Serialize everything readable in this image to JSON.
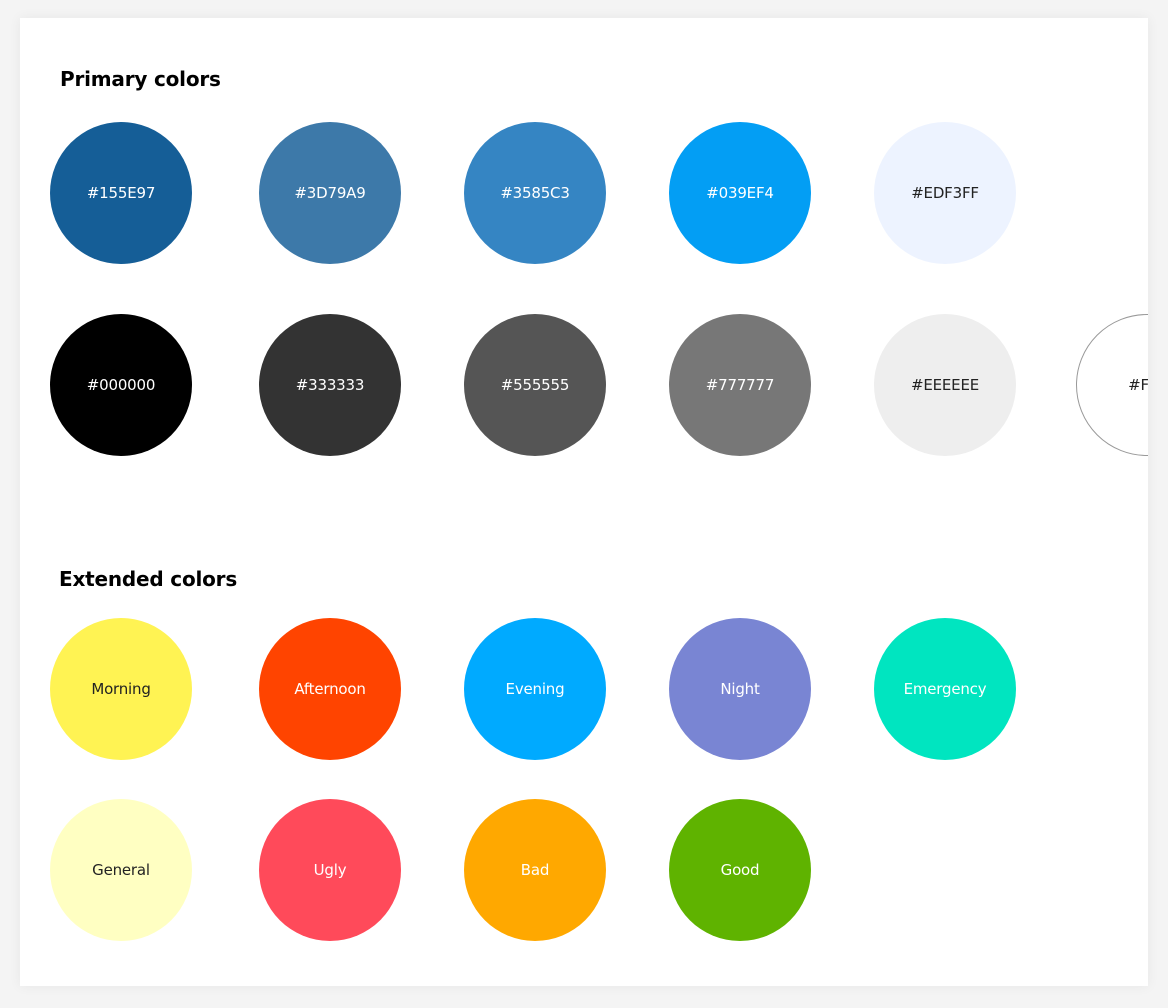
{
  "primary": {
    "title": "Primary colors",
    "row1": [
      {
        "label": "#155E97",
        "color": "#155E97",
        "text_color": "#FFFFFF"
      },
      {
        "label": "#3D79A9",
        "color": "#3D79A9",
        "text_color": "#FFFFFF"
      },
      {
        "label": "#3585C3",
        "color": "#3585C3",
        "text_color": "#FFFFFF"
      },
      {
        "label": "#039EF4",
        "color": "#039EF4",
        "text_color": "#FFFFFF"
      },
      {
        "label": "#EDF3FF",
        "color": "#EDF3FF",
        "text_color": "#222222"
      }
    ],
    "row2": [
      {
        "label": "#000000",
        "color": "#000000",
        "text_color": "#FFFFFF"
      },
      {
        "label": "#333333",
        "color": "#333333",
        "text_color": "#FFFFFF"
      },
      {
        "label": "#555555",
        "color": "#555555",
        "text_color": "#FFFFFF"
      },
      {
        "label": "#777777",
        "color": "#777777",
        "text_color": "#FFFFFF"
      },
      {
        "label": "#EEEEEE",
        "color": "#EEEEEE",
        "text_color": "#222222"
      },
      {
        "label": "#FFF",
        "color": "#FFFFFF",
        "text_color": "#222222",
        "outline": "#999999"
      }
    ]
  },
  "extended": {
    "title": "Extended colors",
    "row1": [
      {
        "label": "Morning",
        "color": "#FFF353",
        "text_color": "#222222"
      },
      {
        "label": "Afternoon",
        "color": "#FF4400",
        "text_color": "#FFFFFF"
      },
      {
        "label": "Evening",
        "color": "#00AAFF",
        "text_color": "#FFFFFF"
      },
      {
        "label": "Night",
        "color": "#7985D3",
        "text_color": "#FFFFFF"
      },
      {
        "label": "Emergency",
        "color": "#00E5C0",
        "text_color": "#FFFFFF"
      }
    ],
    "row2": [
      {
        "label": "General",
        "color": "#FFFFC2",
        "text_color": "#222222"
      },
      {
        "label": "Ugly",
        "color": "#FF4A5A",
        "text_color": "#FFFFFF"
      },
      {
        "label": "Bad",
        "color": "#FFA800",
        "text_color": "#FFFFFF"
      },
      {
        "label": "Good",
        "color": "#5FB300",
        "text_color": "#FFFFFF"
      }
    ]
  }
}
